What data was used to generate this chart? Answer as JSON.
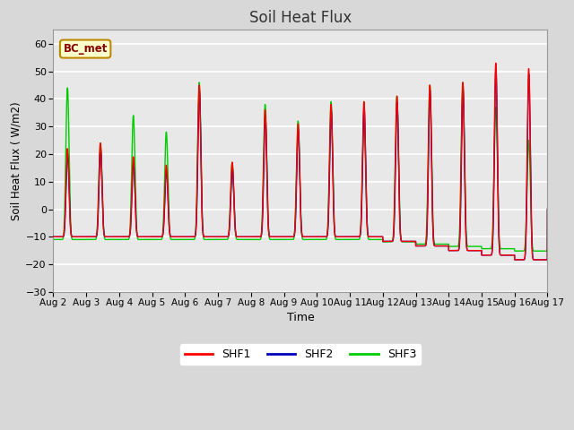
{
  "title": "Soil Heat Flux",
  "xlabel": "Time",
  "ylabel": "Soil Heat Flux ( W/m2)",
  "ylim": [
    -30,
    65
  ],
  "yticks": [
    -30,
    -20,
    -10,
    0,
    10,
    20,
    30,
    40,
    50,
    60
  ],
  "colors": {
    "SHF1": "#ff0000",
    "SHF2": "#0000bb",
    "SHF3": "#00cc00"
  },
  "legend_label": "BC_met",
  "legend_box_facecolor": "#ffffcc",
  "legend_box_edge": "#bb8800",
  "fig_facecolor": "#d8d8d8",
  "axes_facecolor": "#e8e8e8",
  "grid_color": "#ffffff",
  "linewidth": 1.0,
  "n_days": 15,
  "ppd": 288,
  "peak_amps_shf1": [
    22,
    24,
    19,
    16,
    45,
    17,
    36,
    31,
    38,
    39,
    41,
    45,
    46,
    53,
    51
  ],
  "peak_amps_shf3": [
    44,
    24,
    34,
    28,
    46,
    17,
    38,
    32,
    39,
    33,
    41,
    45,
    46,
    37,
    25
  ],
  "night_base_early": -10,
  "night_base_late": -22,
  "transition_day": 9
}
